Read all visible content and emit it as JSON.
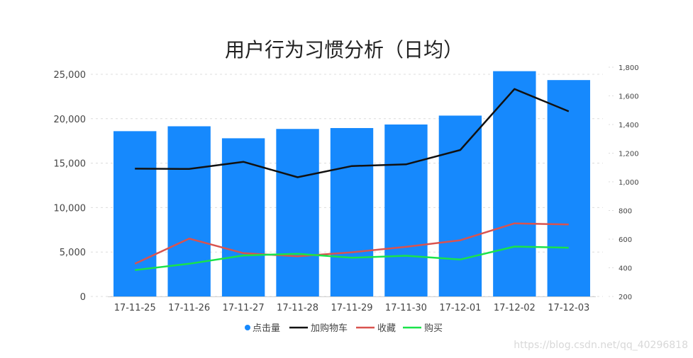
{
  "chart_data": {
    "type": "bar",
    "title": "用户行为习惯分析（日均）",
    "categories": [
      "17-11-25",
      "17-11-26",
      "17-11-27",
      "17-11-28",
      "17-11-29",
      "17-11-30",
      "17-12-01",
      "17-12-02",
      "17-12-03"
    ],
    "bars": {
      "name": "点击量",
      "color": "#1689fd",
      "values": [
        18600,
        19150,
        17800,
        18850,
        18950,
        19350,
        20350,
        25350,
        24350
      ]
    },
    "y_left": {
      "min": 0,
      "max": 25000,
      "ticks": [
        "0",
        "5,000",
        "10,000",
        "15,000",
        "20,000",
        "25,000"
      ]
    },
    "y_right": {
      "min": 200,
      "max": 1800,
      "ticks": [
        "200",
        "400",
        "600",
        "800",
        "1,000",
        "1,200",
        "1,400",
        "1,600",
        "1,800"
      ]
    },
    "lines": [
      {
        "name": "加购物车",
        "color": "#111111",
        "values": [
          1092,
          1090,
          1140,
          1032,
          1110,
          1122,
          1222,
          1648,
          1492
        ]
      },
      {
        "name": "收藏",
        "color": "#d9534f",
        "values": [
          428,
          604,
          502,
          480,
          508,
          546,
          592,
          710,
          702
        ]
      },
      {
        "name": "购买",
        "color": "#19e34a",
        "values": [
          384,
          428,
          486,
          498,
          470,
          484,
          458,
          548,
          540
        ]
      }
    ],
    "legend_position": "bottom",
    "grid": true
  },
  "watermark": "https://blog.csdn.net/qq_40296818"
}
